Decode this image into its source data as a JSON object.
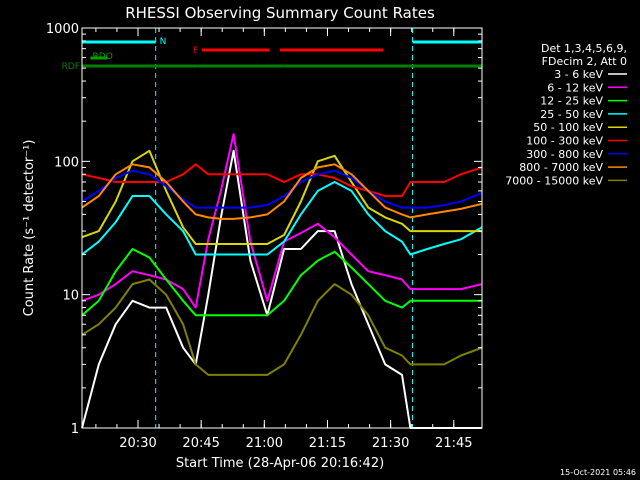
{
  "chart_data": {
    "type": "line",
    "title": "RHESSI Observing Summary Count Rates",
    "xlabel": "Start Time (28-Apr-06 20:16:42)",
    "ylabel": "Count Rate (s⁻¹ detector⁻¹)",
    "yscale": "log",
    "ylim": [
      1,
      1000
    ],
    "xlim_minutes": [
      0,
      95
    ],
    "x_unit": "minutes after 20:16:42",
    "y_ticks": [
      1,
      10,
      100,
      1000
    ],
    "y_tick_labels": [
      "1",
      "10",
      "100",
      "1000"
    ],
    "x_ticks": [
      13.3,
      28.3,
      43.3,
      58.3,
      73.3,
      88.3
    ],
    "x_tick_labels": [
      "20:30",
      "20:45",
      "21:00",
      "21:15",
      "21:30",
      "21:45"
    ],
    "legend": {
      "placement": "right",
      "header": [
        "Det 1,3,4,5,6,9,",
        "FDecim 2, Att 0"
      ]
    },
    "flags": [
      {
        "name": "N",
        "color": "#00ffff",
        "segments": [
          [
            0,
            17.5
          ],
          [
            78.5,
            95
          ]
        ]
      },
      {
        "name": "F",
        "color": "#ff0000",
        "segments": [
          [
            28.5,
            44.5
          ],
          [
            47,
            71.5
          ]
        ]
      },
      {
        "name": "RDO",
        "color": "#00a000",
        "segments": [
          [
            2,
            6
          ]
        ]
      },
      {
        "name": "RDF",
        "color": "#008000",
        "segments": [
          [
            0,
            27.5
          ],
          [
            27.5,
            48
          ],
          [
            48,
            77.5
          ],
          [
            77.5,
            95
          ]
        ]
      }
    ],
    "vertical_markers": [
      {
        "x": 17.5,
        "style": "dashed",
        "color": "#00ffff"
      },
      {
        "x": 78.5,
        "style": "dashed",
        "color": "#00ffff"
      },
      {
        "x": 95,
        "style": "dashed",
        "color": "#00ffff"
      }
    ],
    "x": [
      0,
      4,
      8,
      12,
      16,
      20,
      24,
      27,
      30,
      33,
      36,
      40,
      44,
      48,
      52,
      56,
      60,
      64,
      68,
      72,
      76,
      78,
      82,
      86,
      90,
      95
    ],
    "series": [
      {
        "name": "3 - 6 keV",
        "color": "#ffffff",
        "values": [
          1,
          3,
          6,
          9,
          8,
          8,
          4,
          3,
          10,
          38,
          120,
          18,
          7,
          22,
          22,
          30,
          30,
          12,
          6,
          3,
          2.5,
          1,
          1,
          1,
          1,
          1
        ]
      },
      {
        "name": "6 - 12 keV",
        "color": "#ff00ff",
        "values": [
          9,
          10,
          12,
          15,
          14,
          13,
          11,
          8,
          26,
          60,
          160,
          25,
          9,
          25,
          29,
          34,
          27,
          20,
          15,
          14,
          13,
          11,
          11,
          11,
          11,
          12
        ]
      },
      {
        "name": "12 - 25 keV",
        "color": "#00ff00",
        "values": [
          7,
          9,
          15,
          22,
          19,
          13,
          9,
          7,
          7,
          7,
          7,
          7,
          7,
          9,
          14,
          18,
          21,
          16,
          12,
          9,
          8,
          9,
          9,
          9,
          9,
          9
        ]
      },
      {
        "name": "25 - 50 keV",
        "color": "#00ffff",
        "values": [
          20,
          25,
          35,
          55,
          55,
          40,
          30,
          20,
          20,
          20,
          20,
          20,
          20,
          25,
          40,
          60,
          70,
          60,
          40,
          30,
          25,
          20,
          22,
          24,
          26,
          32
        ]
      },
      {
        "name": "50 - 100 keV",
        "color": "#d8d800",
        "values": [
          27,
          30,
          50,
          100,
          120,
          60,
          32,
          24,
          24,
          24,
          24,
          24,
          24,
          28,
          50,
          100,
          110,
          70,
          45,
          38,
          34,
          30,
          30,
          30,
          30,
          30
        ]
      },
      {
        "name": "100 - 300 keV",
        "color": "#ff0000",
        "values": [
          80,
          75,
          70,
          70,
          70,
          70,
          80,
          95,
          80,
          80,
          80,
          80,
          80,
          70,
          80,
          80,
          75,
          65,
          60,
          55,
          55,
          70,
          70,
          70,
          80,
          90
        ]
      },
      {
        "name": "300 - 800 keV",
        "color": "#0000ff",
        "values": [
          50,
          60,
          75,
          85,
          80,
          65,
          52,
          45,
          45,
          45,
          45,
          45,
          47,
          55,
          70,
          80,
          85,
          75,
          60,
          50,
          45,
          45,
          45,
          47,
          50,
          58
        ]
      },
      {
        "name": "800 - 7000 keV",
        "color": "#ff8800",
        "values": [
          45,
          55,
          80,
          95,
          90,
          70,
          50,
          40,
          38,
          37,
          37,
          38,
          40,
          50,
          75,
          90,
          95,
          80,
          60,
          45,
          40,
          38,
          40,
          42,
          44,
          48
        ]
      },
      {
        "name": "7000 - 15000 keV",
        "color": "#808000",
        "values": [
          5,
          6,
          8,
          12,
          13,
          10,
          6,
          3,
          2.5,
          2.5,
          2.5,
          2.5,
          2.5,
          3,
          5,
          9,
          12,
          10,
          7,
          4,
          3.5,
          3,
          3,
          3,
          3.5,
          4
        ]
      }
    ]
  },
  "footer": {
    "timestamp": "15-Oct-2021 05:46"
  }
}
